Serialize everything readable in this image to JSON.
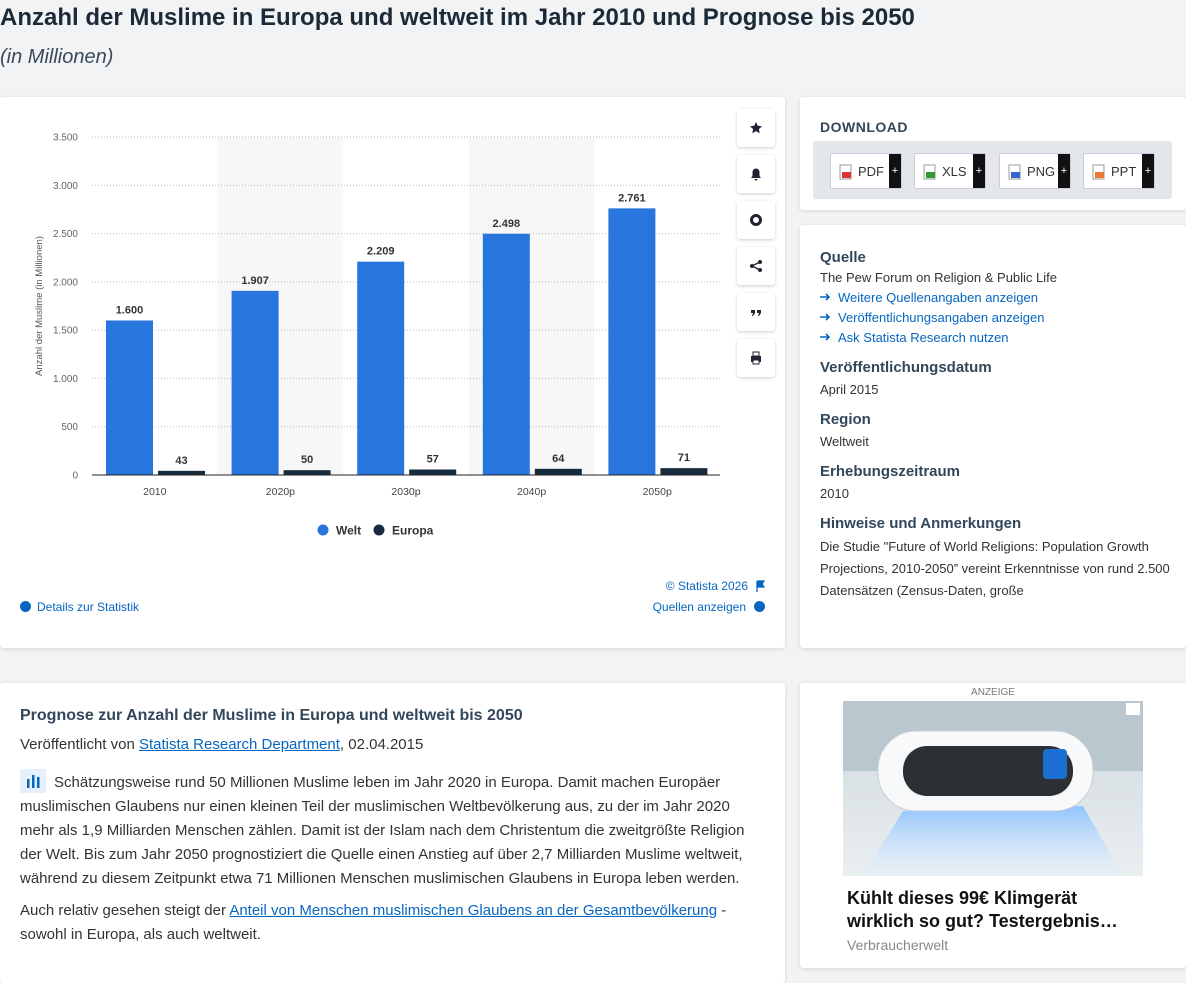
{
  "header": {
    "title": "Anzahl der Muslime in Europa und weltweit im Jahr 2010 und Prognose bis 2050",
    "subtitle": "(in Millionen)"
  },
  "chart_data": {
    "type": "bar",
    "ylabel": "Anzahl der Muslime (in Millionen)",
    "categories": [
      "2010",
      "2020p",
      "2030p",
      "2040p",
      "2050p"
    ],
    "series": [
      {
        "name": "Welt",
        "color": "#2876dd",
        "values": [
          1600,
          1907,
          2209,
          2498,
          2761
        ],
        "value_labels": [
          "1.600",
          "1.907",
          "2.209",
          "2.498",
          "2.761"
        ]
      },
      {
        "name": "Europa",
        "color": "#172b3d",
        "values": [
          43,
          50,
          57,
          64,
          71
        ]
      }
    ],
    "ylim": [
      0,
      3500
    ],
    "yticks": [
      0,
      500,
      {
        "value": 1000,
        "label": "1.000"
      },
      {
        "value": 1500,
        "label": "1.500"
      },
      {
        "value": 2000,
        "label": "2.000"
      },
      {
        "value": 2500,
        "label": "2.500"
      },
      {
        "value": 3000,
        "label": "3.000"
      },
      {
        "value": 3500,
        "label": "3.500"
      }
    ],
    "grid": true,
    "legend": "bottom",
    "copyright": "© Statista 2026"
  },
  "chart_footer": {
    "details": "Details zur Statistik",
    "sources": "Quellen anzeigen"
  },
  "download": {
    "title": "DOWNLOAD",
    "formats": [
      "PDF",
      "XLS",
      "PNG",
      "PPT"
    ]
  },
  "source_panel": {
    "source_heading": "Quelle",
    "source": "The Pew Forum on Religion & Public Life",
    "links": [
      "Weitere Quellenangaben anzeigen",
      "Veröffentlichungsangaben anzeigen",
      "Ask Statista Research nutzen"
    ],
    "date_heading": "Veröffentlichungsdatum",
    "date": "April 2015",
    "region_heading": "Region",
    "region": "Weltweit",
    "period_heading": "Erhebungszeitraum",
    "period": "2010",
    "notes_heading": "Hinweise und Anmerkungen",
    "notes": "Die Studie \"Future of World Religions: Population Growth Projections, 2010-2050” vereint Erkenntnisse von rund 2.500 Datensätzen (Zensus-Daten, große"
  },
  "article": {
    "title": "Prognose zur Anzahl der Muslime in Europa und weltweit bis 2050",
    "published_by": "Veröffentlicht von",
    "author": "Statista Research Department",
    "date": ", 02.04.2015",
    "paragraph1": "Schätzungsweise rund 50 Millionen Muslime leben im Jahr 2020 in Europa. Damit machen Europäer muslimischen Glaubens nur einen kleinen Teil der muslimischen Weltbevölkerung aus, zu der im Jahr 2020 mehr als 1,9 Milliarden Menschen zählen. Damit ist der Islam nach dem Christentum die zweitgrößte Religion der Welt. Bis zum Jahr 2050 prognostiziert die Quelle einen Anstieg auf über 2,7 Milliarden Muslime weltweit, während zu diesem Zeitpunkt etwa 71 Millionen Menschen muslimischen Glaubens in Europa leben werden.",
    "paragraph2_start": "Auch relativ gesehen steigt der",
    "paragraph2_link": "Anteil von Menschen muslimischen Glaubens an der Gesamtbevölkerung",
    "paragraph2_end": "- sowohl in Europa, als auch weltweit."
  },
  "ad": {
    "label": "ANZEIGE",
    "headline": "Kühlt dieses 99€ Klimgerät wirklich so gut? Testergebnis…",
    "advertiser": "Verbraucherwelt"
  }
}
